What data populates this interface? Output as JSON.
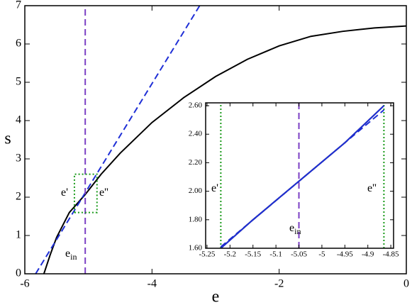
{
  "chart_data": [
    {
      "type": "line",
      "xlabel": "e",
      "ylabel": "s",
      "xlim": [
        -6,
        0
      ],
      "ylim": [
        0,
        7
      ],
      "xticks": [
        -6,
        -4,
        -2,
        0
      ],
      "yticks": [
        0,
        1,
        2,
        3,
        4,
        5,
        6,
        7
      ],
      "series": [
        {
          "color": "#000000",
          "dash": "solid",
          "x": [
            -5.7,
            -5.6,
            -5.5,
            -5.3,
            -5.05,
            -4.8,
            -4.5,
            -4.0,
            -3.5,
            -3.0,
            -2.5,
            -2.0,
            -1.5,
            -1.0,
            -0.5,
            0
          ],
          "values": [
            0,
            0.5,
            0.95,
            1.6,
            2.07,
            2.6,
            3.15,
            3.95,
            4.6,
            5.15,
            5.6,
            5.95,
            6.2,
            6.33,
            6.42,
            6.47
          ]
        },
        {
          "color": "#1f2fd6",
          "dash": "dashed",
          "x": [
            -5.83,
            -3.25
          ],
          "values": [
            0,
            7
          ]
        },
        {
          "color": "#7b3fc4",
          "dash": "dashed",
          "x": [
            -5.05,
            -5.05
          ],
          "values": [
            0,
            7
          ]
        },
        {
          "color": "#1a9a1a",
          "dash": "dotted",
          "x": [
            -5.22,
            -4.865,
            -4.865,
            -5.22,
            -5.22
          ],
          "values": [
            1.6,
            1.6,
            2.6,
            2.6,
            1.6
          ]
        }
      ],
      "annotations": [
        {
          "text": "e'"
        },
        {
          "text": "e''"
        },
        {
          "text": "e",
          "sub": "in"
        }
      ]
    },
    {
      "type": "line",
      "xlim": [
        -5.253,
        -4.844
      ],
      "ylim": [
        1.6,
        2.62
      ],
      "xticks": [
        -5.25,
        -5.2,
        -5.15,
        -5.1,
        -5.05,
        -5,
        -4.95,
        -4.9,
        -4.85
      ],
      "yticks": [
        {
          "value": 1.6,
          "label": "1.60"
        },
        {
          "value": 1.8,
          "label": "1.80"
        },
        {
          "value": 2.0,
          "label": "2.00"
        },
        {
          "value": 2.2,
          "label": "2.20"
        },
        {
          "value": 2.4,
          "label": "2.40"
        },
        {
          "value": 2.6,
          "label": "2.60"
        }
      ],
      "series": [
        {
          "color": "#1a9a1a",
          "dash": "dotted",
          "x": [
            -5.22,
            -5.22
          ],
          "values": [
            1.6,
            2.62
          ]
        },
        {
          "color": "#1a9a1a",
          "dash": "dotted",
          "x": [
            -4.865,
            -4.865
          ],
          "values": [
            1.6,
            2.62
          ]
        },
        {
          "color": "#7b3fc4",
          "dash": "dashed",
          "x": [
            -5.05,
            -5.05
          ],
          "values": [
            1.6,
            2.62
          ]
        },
        {
          "color": "#1f2fd6",
          "dash": "dashed",
          "x": [
            -5.22,
            -4.865
          ],
          "values": [
            1.61,
            2.57
          ]
        },
        {
          "color": "#000000",
          "dash": "solid",
          "x": [
            -5.22,
            -5.15,
            -5.05,
            -4.95,
            -4.865
          ],
          "values": [
            1.6,
            1.8,
            2.07,
            2.34,
            2.6
          ]
        },
        {
          "color": "#1f2fd6",
          "dash": "solid",
          "x": [
            -5.22,
            -5.15,
            -5.05,
            -4.95,
            -4.865
          ],
          "values": [
            1.6,
            1.8,
            2.07,
            2.34,
            2.6
          ]
        }
      ],
      "annotations": [
        {
          "text": "e'"
        },
        {
          "text": "e''"
        },
        {
          "text": "e",
          "sub": "in"
        }
      ]
    }
  ]
}
